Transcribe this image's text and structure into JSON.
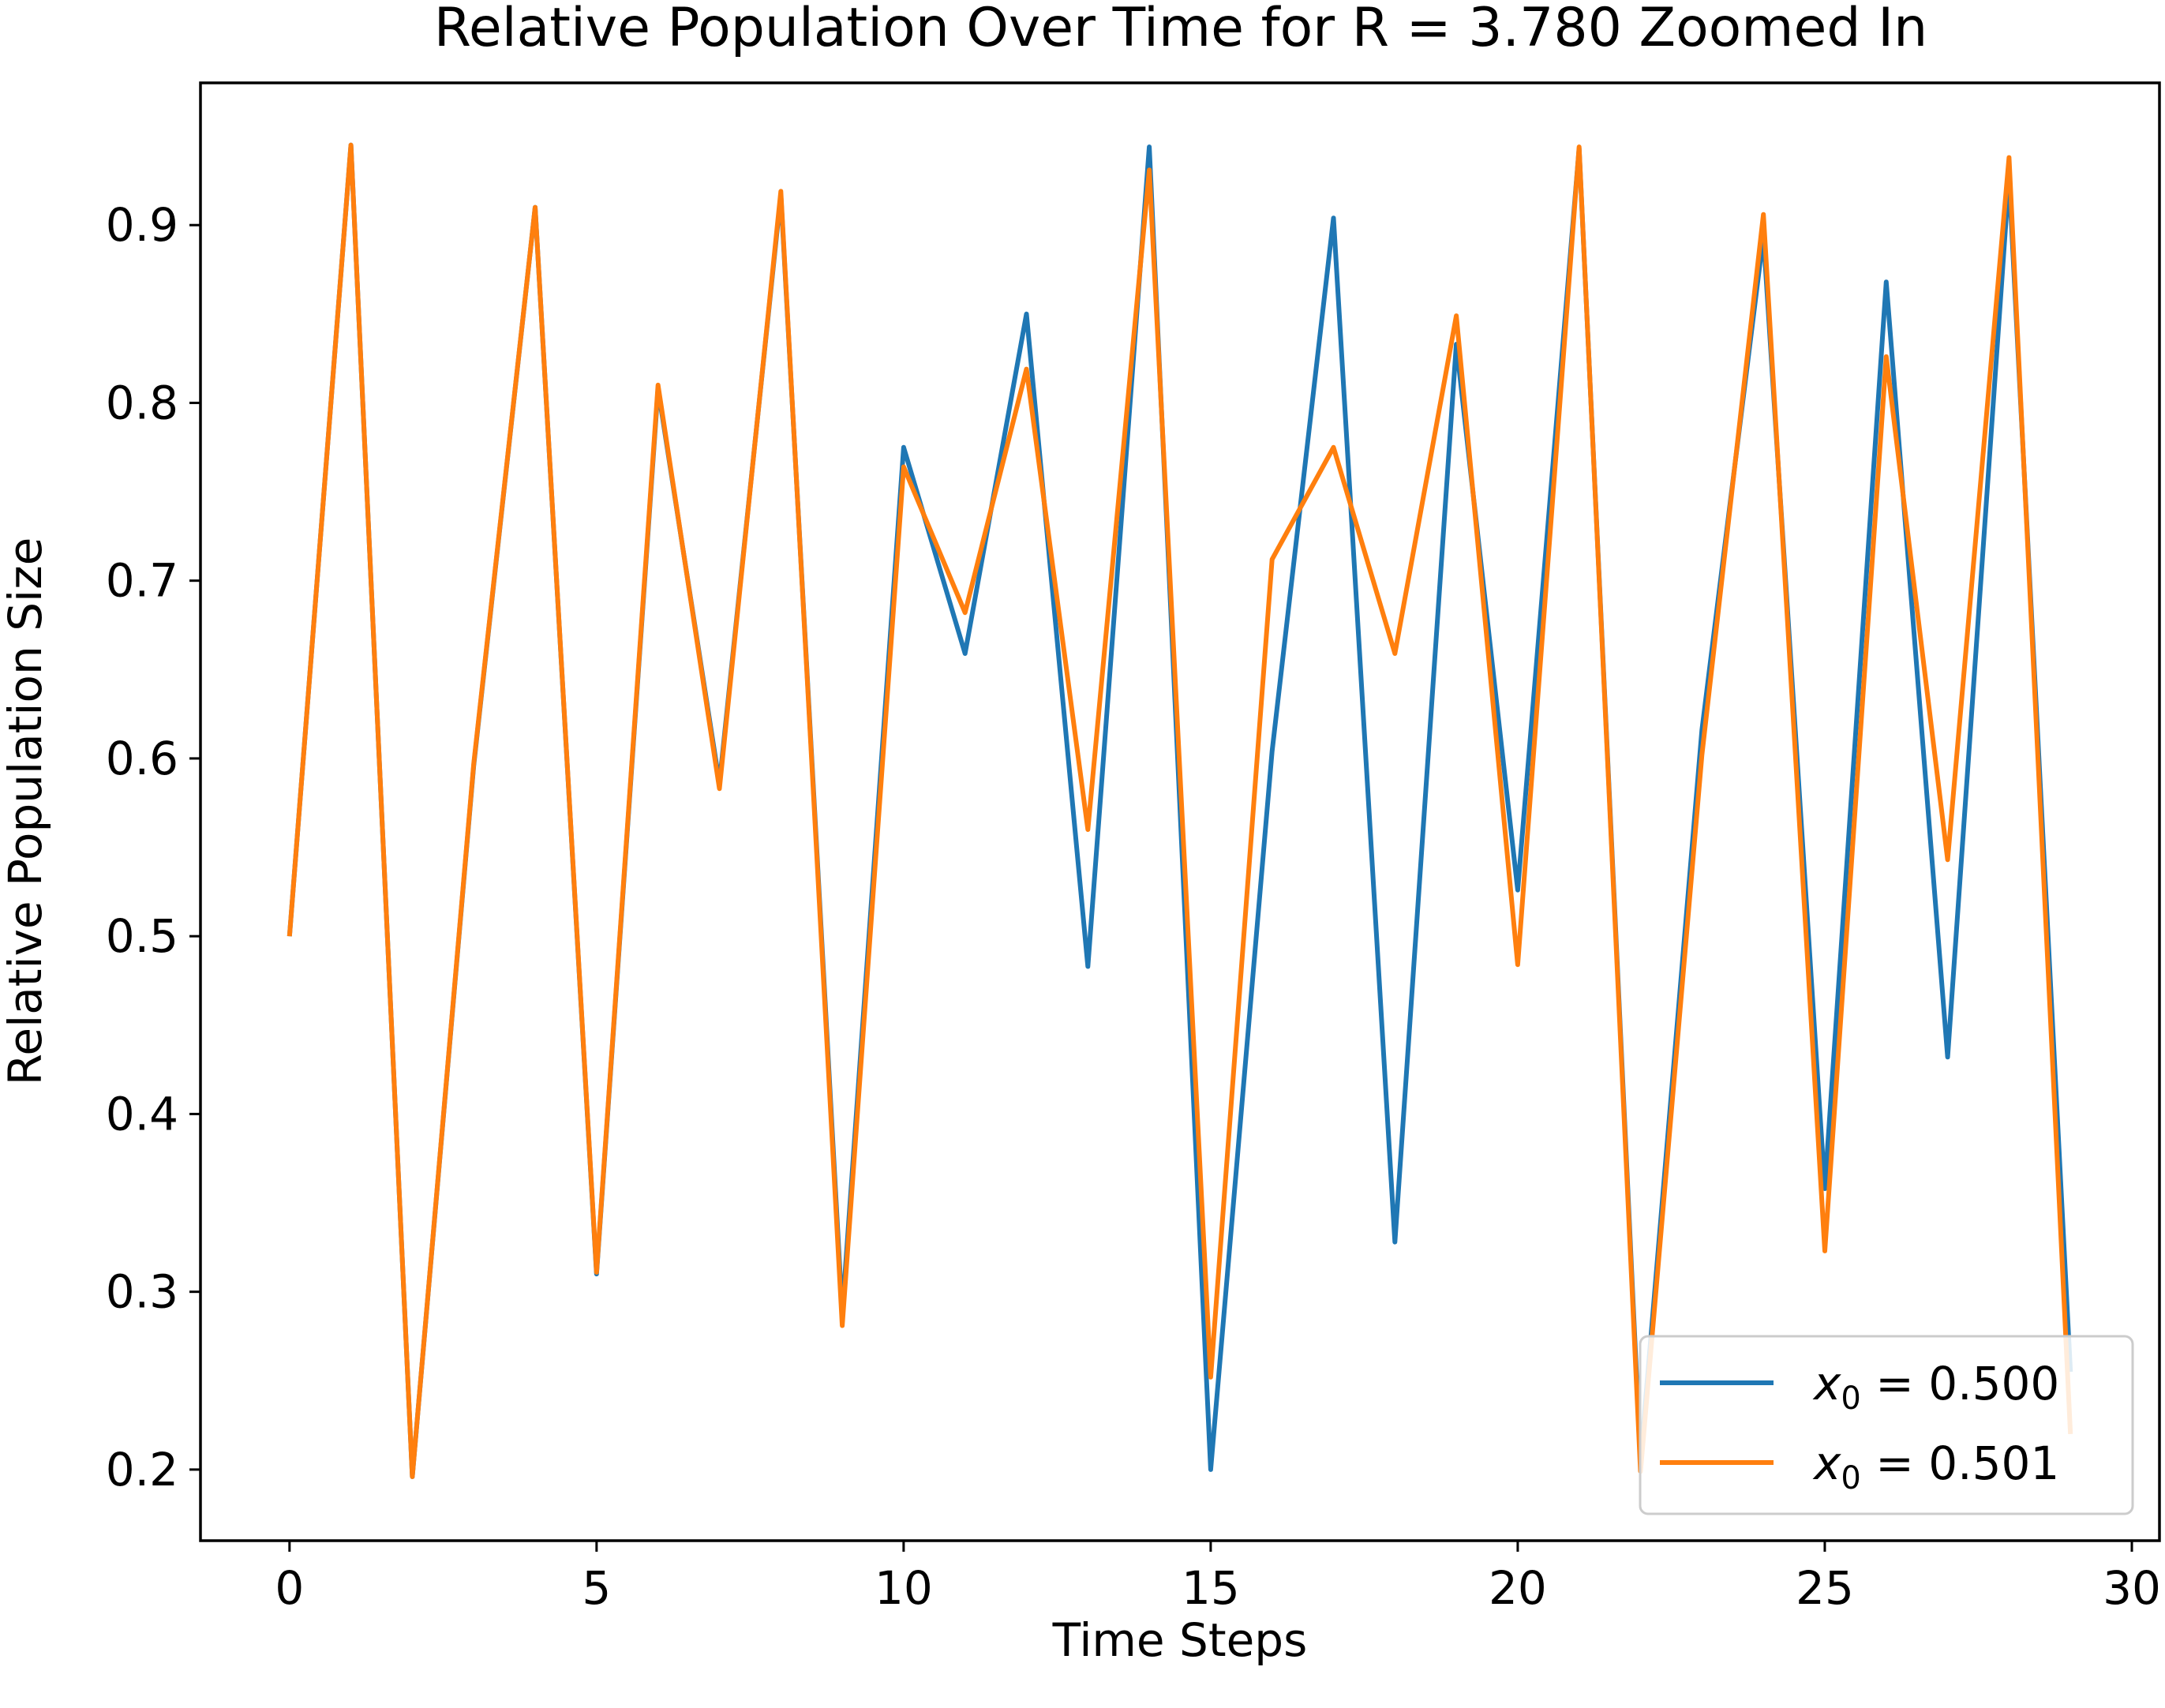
{
  "chart_data": {
    "type": "line",
    "title": "Relative Population Over Time for R = 3.780 Zoomed In",
    "xlabel": "Time Steps",
    "ylabel": "Relative Population Size",
    "xlim": [
      -1.45,
      30.45
    ],
    "ylim": [
      0.16,
      0.98
    ],
    "xticks": [
      0,
      5,
      10,
      15,
      20,
      25,
      30
    ],
    "yticks": [
      0.2,
      0.3,
      0.4,
      0.5,
      0.6,
      0.7,
      0.8,
      0.9
    ],
    "xtick_labels": [
      "0",
      "5",
      "10",
      "15",
      "20",
      "25",
      "30"
    ],
    "ytick_labels": [
      "0.2",
      "0.3",
      "0.4",
      "0.5",
      "0.6",
      "0.7",
      "0.8",
      "0.9"
    ],
    "grid": false,
    "legend_position": "lower-right",
    "x": [
      0,
      1,
      2,
      3,
      4,
      5,
      6,
      7,
      8,
      9,
      10,
      11,
      12,
      13,
      14,
      15,
      16,
      17,
      18,
      19,
      20,
      21,
      22,
      23,
      24,
      25,
      26,
      27,
      28,
      29
    ],
    "series": [
      {
        "name": "x0 = 0.500",
        "legend_var": "x",
        "legend_sub": "0",
        "legend_rest": " = 0.500",
        "color": "#1f77b4",
        "values": [
          0.5,
          0.945,
          0.196,
          0.596,
          0.91,
          0.31,
          0.808,
          0.586,
          0.917,
          0.288,
          0.775,
          0.659,
          0.85,
          0.483,
          0.944,
          0.2,
          0.604,
          0.904,
          0.328,
          0.833,
          0.526,
          0.943,
          0.205,
          0.616,
          0.894,
          0.358,
          0.868,
          0.432,
          0.927,
          0.255
        ]
      },
      {
        "name": "x0 = 0.501",
        "legend_var": "x",
        "legend_sub": "0",
        "legend_rest": " = 0.501",
        "color": "#ff7f0e",
        "values": [
          0.5,
          0.945,
          0.196,
          0.597,
          0.91,
          0.311,
          0.81,
          0.583,
          0.919,
          0.281,
          0.764,
          0.682,
          0.819,
          0.56,
          0.931,
          0.252,
          0.712,
          0.775,
          0.659,
          0.849,
          0.484,
          0.944,
          0.199,
          0.602,
          0.906,
          0.323,
          0.826,
          0.543,
          0.938,
          0.22
        ]
      }
    ]
  }
}
